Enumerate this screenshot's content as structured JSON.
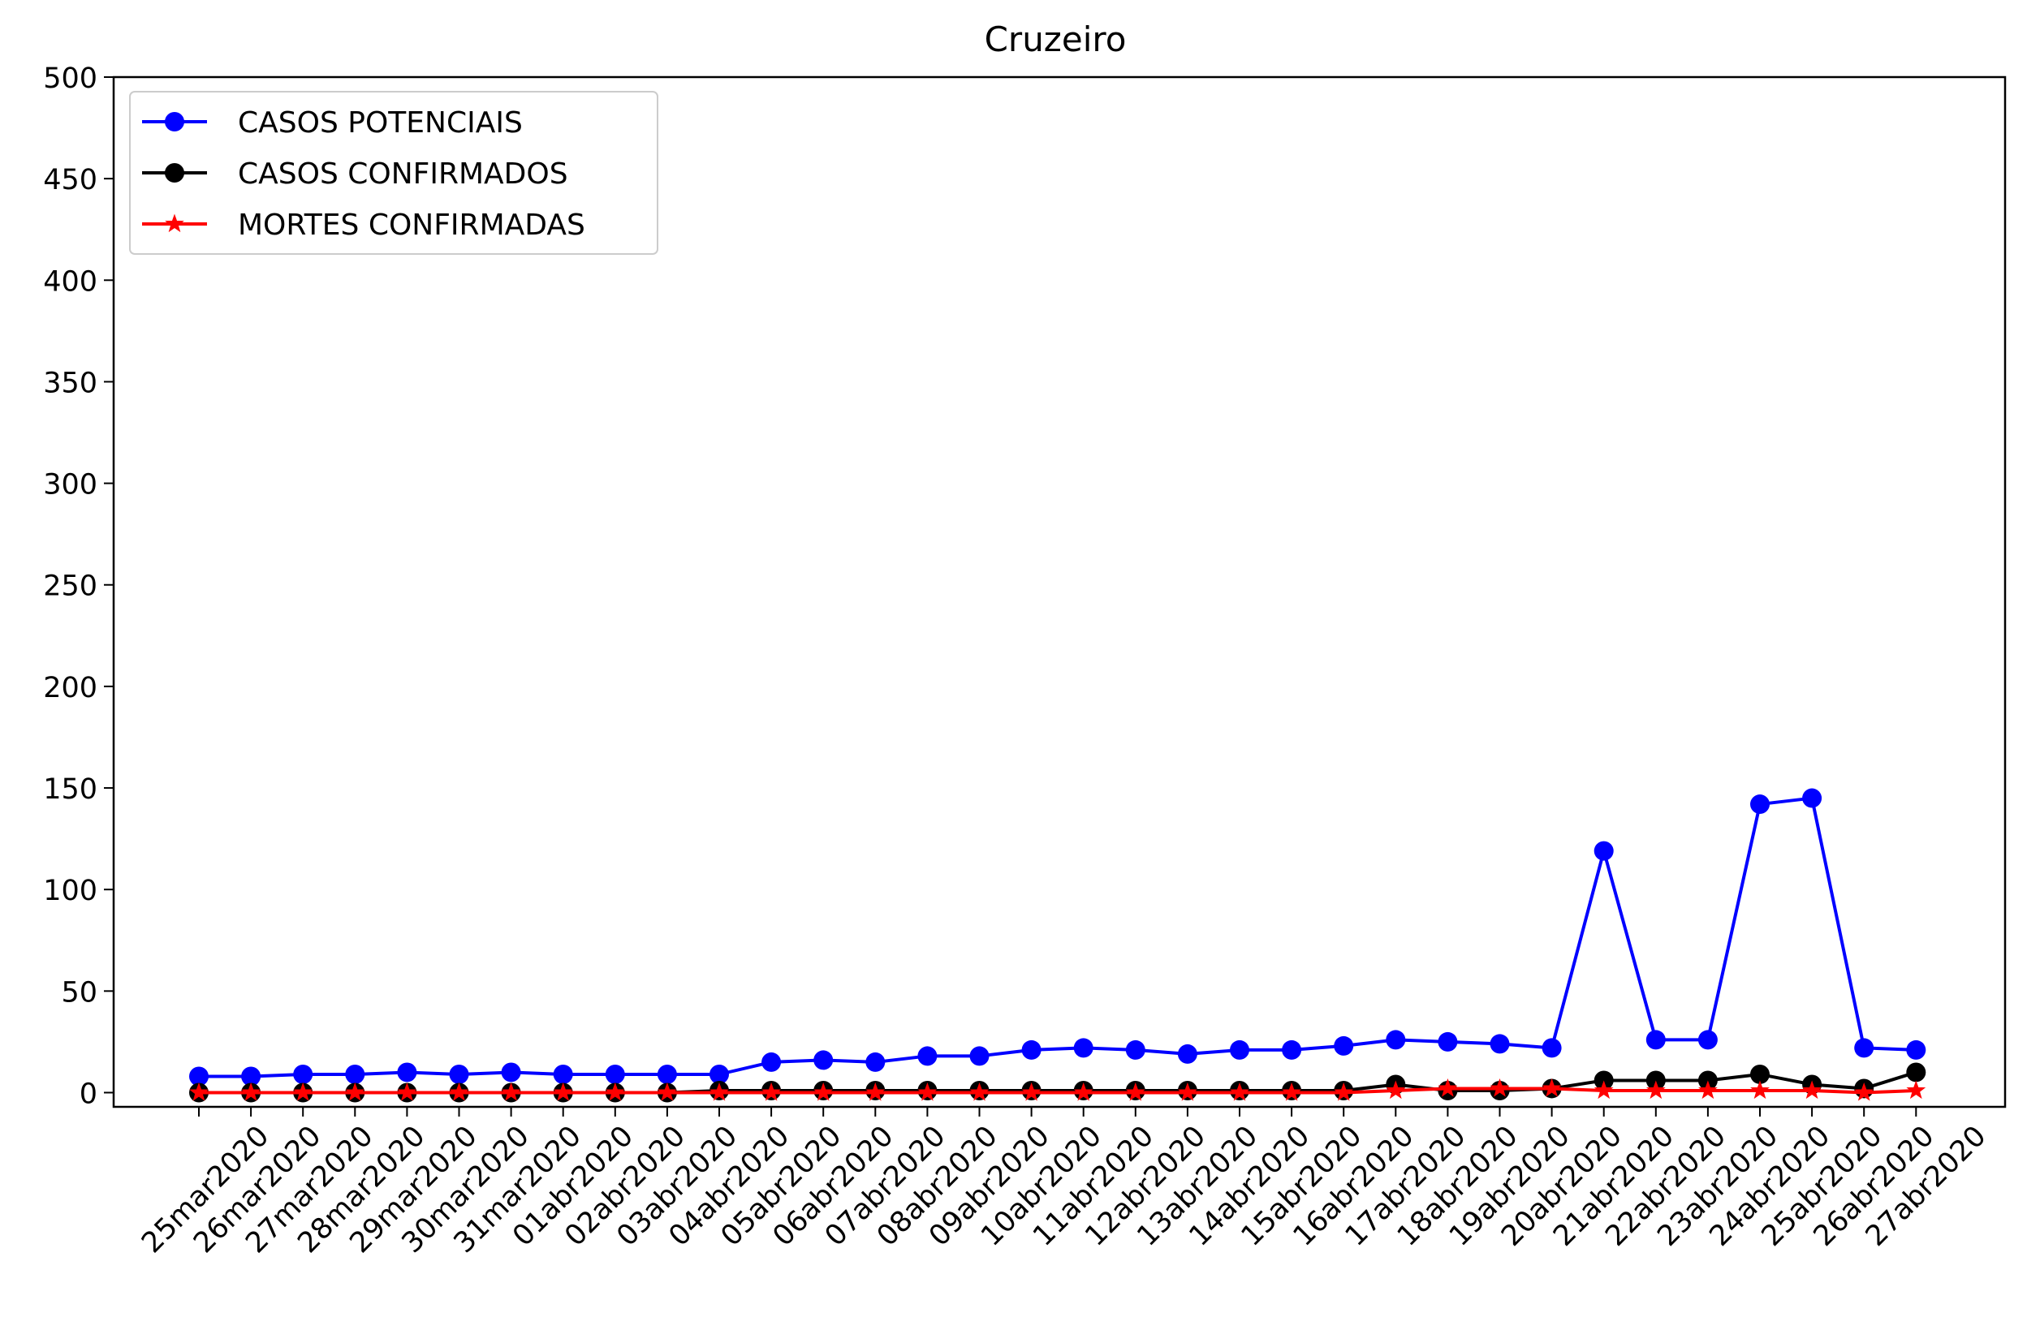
{
  "chart_data": {
    "type": "line",
    "title": "Cruzeiro",
    "xlabel": "",
    "ylabel": "",
    "ylim": [
      -7,
      500
    ],
    "yticks": [
      0,
      50,
      100,
      150,
      200,
      250,
      300,
      350,
      400,
      450,
      500
    ],
    "grid": false,
    "legend_position": "top-left",
    "categories": [
      "25mar2020",
      "26mar2020",
      "27mar2020",
      "28mar2020",
      "29mar2020",
      "30mar2020",
      "31mar2020",
      "01abr2020",
      "02abr2020",
      "03abr2020",
      "04abr2020",
      "05abr2020",
      "06abr2020",
      "07abr2020",
      "08abr2020",
      "09abr2020",
      "10abr2020",
      "11abr2020",
      "12abr2020",
      "13abr2020",
      "14abr2020",
      "15abr2020",
      "16abr2020",
      "17abr2020",
      "18abr2020",
      "19abr2020",
      "20abr2020",
      "21abr2020",
      "22abr2020",
      "23abr2020",
      "24abr2020",
      "25abr2020",
      "26abr2020",
      "27abr2020"
    ],
    "series": [
      {
        "name": "CASOS POTENCIAIS",
        "color": "#0000ff",
        "marker": "circle",
        "values": [
          8,
          8,
          9,
          9,
          10,
          9,
          10,
          9,
          9,
          9,
          9,
          15,
          16,
          15,
          18,
          18,
          21,
          22,
          21,
          19,
          21,
          21,
          23,
          26,
          25,
          24,
          22,
          119,
          26,
          26,
          142,
          145,
          22,
          21
        ]
      },
      {
        "name": "CASOS CONFIRMADOS",
        "color": "#000000",
        "marker": "circle",
        "values": [
          0,
          0,
          0,
          0,
          0,
          0,
          0,
          0,
          0,
          0,
          1,
          1,
          1,
          1,
          1,
          1,
          1,
          1,
          1,
          1,
          1,
          1,
          1,
          4,
          1,
          1,
          2,
          6,
          6,
          6,
          9,
          4,
          2,
          10
        ]
      },
      {
        "name": "MORTES CONFIRMADAS",
        "color": "#ff0000",
        "marker": "star",
        "values": [
          0,
          0,
          0,
          0,
          0,
          0,
          0,
          0,
          0,
          0,
          0,
          0,
          0,
          0,
          0,
          0,
          0,
          0,
          0,
          0,
          0,
          0,
          0,
          1,
          2,
          2,
          2,
          1,
          1,
          1,
          1,
          1,
          0,
          1
        ]
      }
    ]
  }
}
